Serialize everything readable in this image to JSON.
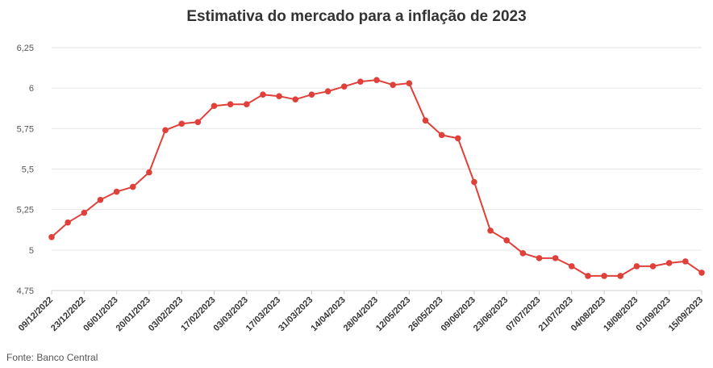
{
  "chart_data": {
    "type": "line",
    "title": "Estimativa do mercado para a inflação de 2023",
    "source": "Fonte: Banco Central",
    "xlabel": "",
    "ylabel": "",
    "ylim": [
      4.75,
      6.25
    ],
    "yticks": [
      "4,75",
      "5",
      "5,25",
      "5,5",
      "5,75",
      "6",
      "6,25"
    ],
    "yticks_values": [
      4.75,
      5.0,
      5.25,
      5.5,
      5.75,
      6.0,
      6.25
    ],
    "xtick_labels": [
      "09/12/2022",
      "23/12/2022",
      "06/01/2023",
      "20/01/2023",
      "03/02/2023",
      "17/02/2023",
      "03/03/2023",
      "17/03/2023",
      "31/03/2023",
      "14/04/2023",
      "28/04/2023",
      "12/05/2023",
      "26/05/2023",
      "09/06/2023",
      "23/06/2023",
      "07/07/2023",
      "21/07/2023",
      "04/08/2023",
      "18/08/2023",
      "01/09/2023",
      "15/09/2023"
    ],
    "grid": true,
    "legend": false,
    "line_color": "#e0403a",
    "series": [
      {
        "x": [
          "09/12/2022",
          "16/12/2022",
          "23/12/2022",
          "30/12/2022",
          "06/01/2023",
          "13/01/2023",
          "20/01/2023",
          "27/01/2023",
          "03/02/2023",
          "10/02/2023",
          "17/02/2023",
          "24/02/2023",
          "03/03/2023",
          "10/03/2023",
          "17/03/2023",
          "24/03/2023",
          "31/03/2023",
          "06/04/2023",
          "14/04/2023",
          "21/04/2023",
          "28/04/2023",
          "05/05/2023",
          "12/05/2023",
          "19/05/2023",
          "26/05/2023",
          "02/06/2023",
          "09/06/2023",
          "16/06/2023",
          "23/06/2023",
          "30/06/2023",
          "07/07/2023",
          "14/07/2023",
          "21/07/2023",
          "28/07/2023",
          "04/08/2023",
          "11/08/2023",
          "18/08/2023",
          "25/08/2023",
          "01/09/2023",
          "08/09/2023",
          "15/09/2023"
        ],
        "values": [
          5.08,
          5.17,
          5.23,
          5.31,
          5.36,
          5.39,
          5.48,
          5.74,
          5.78,
          5.79,
          5.89,
          5.9,
          5.9,
          5.96,
          5.95,
          5.93,
          5.96,
          5.98,
          6.01,
          6.04,
          6.05,
          6.02,
          6.03,
          5.8,
          5.71,
          5.69,
          5.42,
          5.12,
          5.06,
          4.98,
          4.95,
          4.95,
          4.9,
          4.84,
          4.84,
          4.84,
          4.9,
          4.9,
          4.92,
          4.93,
          4.86
        ]
      }
    ]
  }
}
